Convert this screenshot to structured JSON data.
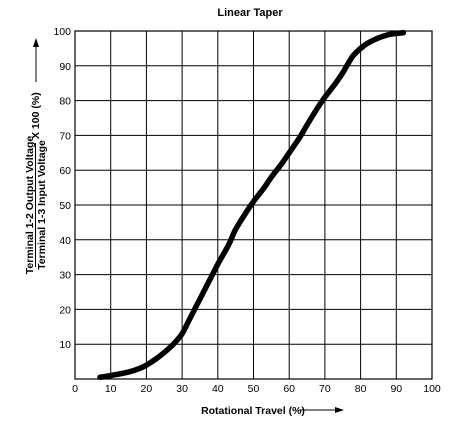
{
  "chart_data": {
    "type": "line",
    "title": "Linear Taper",
    "xlabel": "Rotational Travel (%)",
    "ylabel_top": "Terminal 1-2 Output Voltage",
    "ylabel_bottom": "Terminal 1-3 Input Voltage",
    "ylabel_suffix": "X 100 (%)",
    "xlim": [
      0,
      100
    ],
    "ylim": [
      0,
      100
    ],
    "xticks": [
      "0",
      "10",
      "20",
      "30",
      "40",
      "50",
      "60",
      "70",
      "80",
      "90",
      "100"
    ],
    "yticks": [
      "10",
      "20",
      "30",
      "40",
      "50",
      "60",
      "70",
      "80",
      "90",
      "100"
    ],
    "grid": true,
    "series": [
      {
        "x": [
          7,
          10,
          15,
          18,
          20,
          23,
          26,
          28,
          30,
          32,
          35,
          38,
          40,
          43,
          45,
          48,
          50,
          53,
          55,
          58,
          60,
          63,
          65,
          68,
          70,
          73,
          75,
          77,
          78,
          80,
          82,
          85,
          88,
          90,
          92
        ],
        "y": [
          0.5,
          1,
          2,
          3,
          4,
          6,
          8.5,
          10.5,
          13,
          17,
          23,
          29,
          33,
          38.5,
          43,
          48,
          51,
          55,
          58,
          62,
          65,
          69.5,
          73,
          78,
          81,
          85,
          88,
          91.5,
          93,
          95,
          96.5,
          98,
          99,
          99.3,
          99.5
        ],
        "color": "#000000"
      }
    ]
  }
}
